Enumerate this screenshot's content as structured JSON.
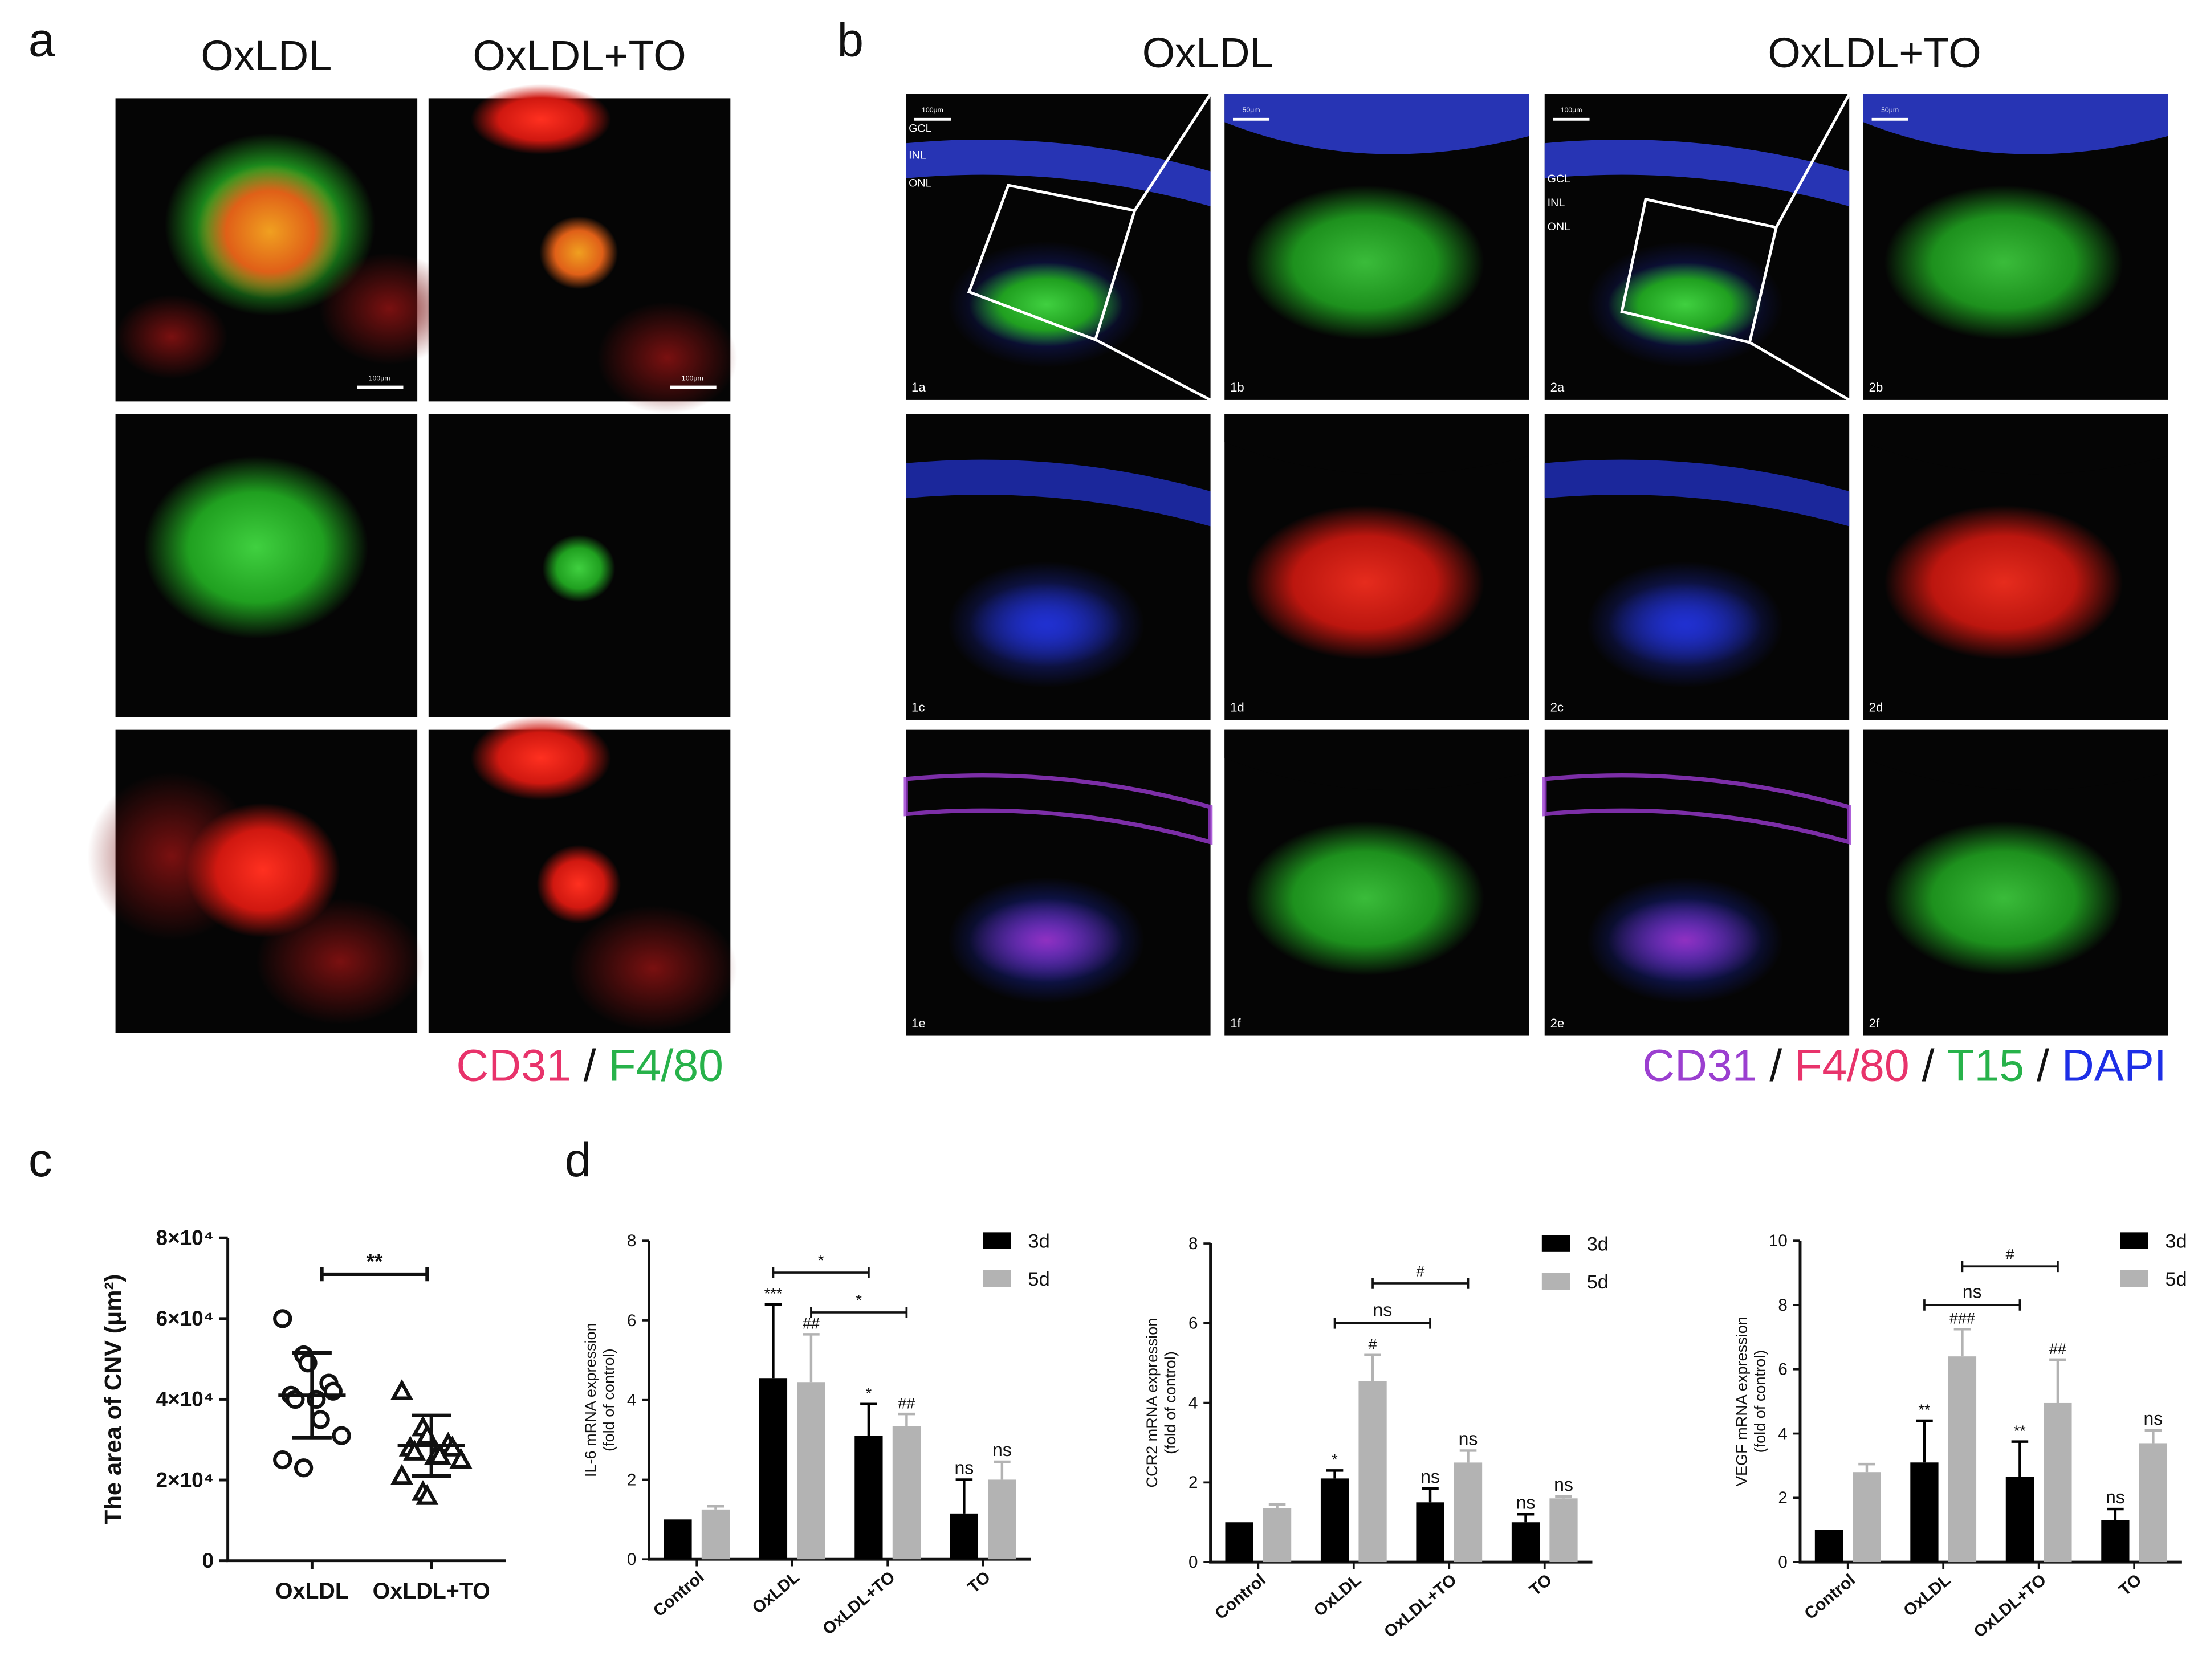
{
  "panel_letters": [
    "a",
    "b",
    "c",
    "d"
  ],
  "panel_a": {
    "columns": [
      "OxLDL",
      "OxLDL+TO"
    ],
    "scale_bars": [
      "100μm",
      "100μm"
    ],
    "legend": [
      {
        "text": "CD31",
        "color": "#e8336b"
      },
      {
        "text": "F4/80",
        "color": "#27b24a"
      }
    ],
    "legend_separator": "/"
  },
  "panel_b": {
    "columns": [
      "OxLDL",
      "OxLDL+TO"
    ],
    "image_labels": [
      "1a",
      "1b",
      "2a",
      "2b",
      "1c",
      "1d",
      "2c",
      "2d",
      "1e",
      "1f",
      "2e",
      "2f"
    ],
    "layer_labels": [
      "GCL",
      "INL",
      "ONL"
    ],
    "scale_bars": [
      "100μm",
      "50μm",
      "100μm",
      "50μm"
    ],
    "legend": [
      {
        "text": "CD31",
        "color": "#9b3fd0"
      },
      {
        "text": "F4/80",
        "color": "#e8336b"
      },
      {
        "text": "T15",
        "color": "#27b24a"
      },
      {
        "text": "DAPI",
        "color": "#1d2ee6"
      }
    ],
    "legend_separator": "/"
  },
  "chart_data": [
    {
      "type": "dot",
      "ylabel": "The area of CNV (μm²)",
      "categories": [
        "OxLDL",
        "OxLDL+TO"
      ],
      "markers": [
        "circle",
        "triangle"
      ],
      "values": [
        [
          60000,
          51000,
          49000,
          44000,
          42000,
          41000,
          40000,
          40000,
          35000,
          31000,
          25000,
          23000
        ],
        [
          42000,
          33000,
          31000,
          29000,
          28000,
          28000,
          27000,
          26000,
          26000,
          25000,
          21000,
          17000,
          16000
        ]
      ],
      "summary": [
        {
          "mean": 41000,
          "sd": 10500
        },
        {
          "mean": 28500,
          "sd": 7500
        }
      ],
      "ylim": [
        0,
        80000
      ],
      "yticks": [
        {
          "value": 0,
          "label": "0"
        },
        {
          "value": 20000,
          "label": "2×10⁴"
        },
        {
          "value": 40000,
          "label": "4×10⁴"
        },
        {
          "value": 60000,
          "label": "6×10⁴"
        },
        {
          "value": 80000,
          "label": "8×10⁴"
        }
      ],
      "brackets": [
        {
          "from": "OxLDL",
          "to": "OxLDL+TO",
          "y": 71000,
          "label": "**"
        }
      ]
    },
    {
      "type": "bar",
      "ylabel": [
        "IL-6 mRNA expression",
        "(fold of control)"
      ],
      "categories": [
        "Control",
        "OxLDL",
        "OxLDL+TO",
        "TO"
      ],
      "series": [
        {
          "name": "3d",
          "color": "#000000",
          "values": [
            1,
            4.55,
            3.1,
            1.15
          ],
          "errors": [
            0,
            1.85,
            0.8,
            0.85
          ],
          "annotations": [
            null,
            "***",
            "*",
            "ns"
          ]
        },
        {
          "name": "5d",
          "color": "#b3b3b3",
          "values": [
            1.25,
            4.45,
            3.35,
            2.0
          ],
          "errors": [
            0.08,
            1.2,
            0.3,
            0.45
          ],
          "annotations": [
            null,
            "##",
            "##",
            "ns"
          ]
        }
      ],
      "ylim": [
        0,
        8
      ],
      "yticks": [
        0,
        2,
        4,
        6,
        8
      ],
      "brackets": [
        {
          "series": "3d",
          "from": "OxLDL",
          "to": "OxLDL+TO",
          "y": 7.2,
          "label": "*"
        },
        {
          "series": "5d",
          "from": "OxLDL",
          "to": "OxLDL+TO",
          "y": 6.2,
          "label": "*"
        }
      ]
    },
    {
      "type": "bar",
      "ylabel": [
        "CCR2 mRNA expression",
        "(fold of control)"
      ],
      "categories": [
        "Control",
        "OxLDL",
        "OxLDL+TO",
        "TO"
      ],
      "series": [
        {
          "name": "3d",
          "color": "#000000",
          "values": [
            1,
            2.1,
            1.5,
            1.0
          ],
          "errors": [
            0,
            0.2,
            0.35,
            0.2
          ],
          "annotations": [
            null,
            "*",
            "ns",
            "ns"
          ]
        },
        {
          "name": "5d",
          "color": "#b3b3b3",
          "values": [
            1.35,
            4.55,
            2.5,
            1.6
          ],
          "errors": [
            0.1,
            0.65,
            0.3,
            0.05
          ],
          "annotations": [
            null,
            "#",
            "ns",
            "ns"
          ]
        }
      ],
      "ylim": [
        0,
        8
      ],
      "yticks": [
        0,
        2,
        4,
        6,
        8
      ],
      "brackets": [
        {
          "series": "3d",
          "from": "OxLDL",
          "to": "OxLDL+TO",
          "y": 6.0,
          "label": "ns"
        },
        {
          "series": "5d",
          "from": "OxLDL",
          "to": "OxLDL+TO",
          "y": 7.0,
          "label": "#"
        }
      ]
    },
    {
      "type": "bar",
      "ylabel": [
        "VEGF mRNA expression",
        "(fold of control)"
      ],
      "categories": [
        "Control",
        "OxLDL",
        "OxLDL+TO",
        "TO"
      ],
      "series": [
        {
          "name": "3d",
          "color": "#000000",
          "values": [
            1,
            3.1,
            2.65,
            1.3
          ],
          "errors": [
            0,
            1.3,
            1.1,
            0.35
          ],
          "annotations": [
            null,
            "**",
            "**",
            "ns"
          ]
        },
        {
          "name": "5d",
          "color": "#b3b3b3",
          "values": [
            2.8,
            6.4,
            4.95,
            3.7
          ],
          "errors": [
            0.25,
            0.85,
            1.35,
            0.4
          ],
          "annotations": [
            null,
            "###",
            "##",
            "ns"
          ]
        }
      ],
      "ylim": [
        0,
        10
      ],
      "yticks": [
        0,
        2,
        4,
        6,
        8,
        10
      ],
      "brackets": [
        {
          "series": "3d",
          "from": "OxLDL",
          "to": "OxLDL+TO",
          "y": 8.0,
          "label": "ns"
        },
        {
          "series": "5d",
          "from": "OxLDL",
          "to": "OxLDL+TO",
          "y": 9.2,
          "label": "#"
        }
      ]
    }
  ]
}
